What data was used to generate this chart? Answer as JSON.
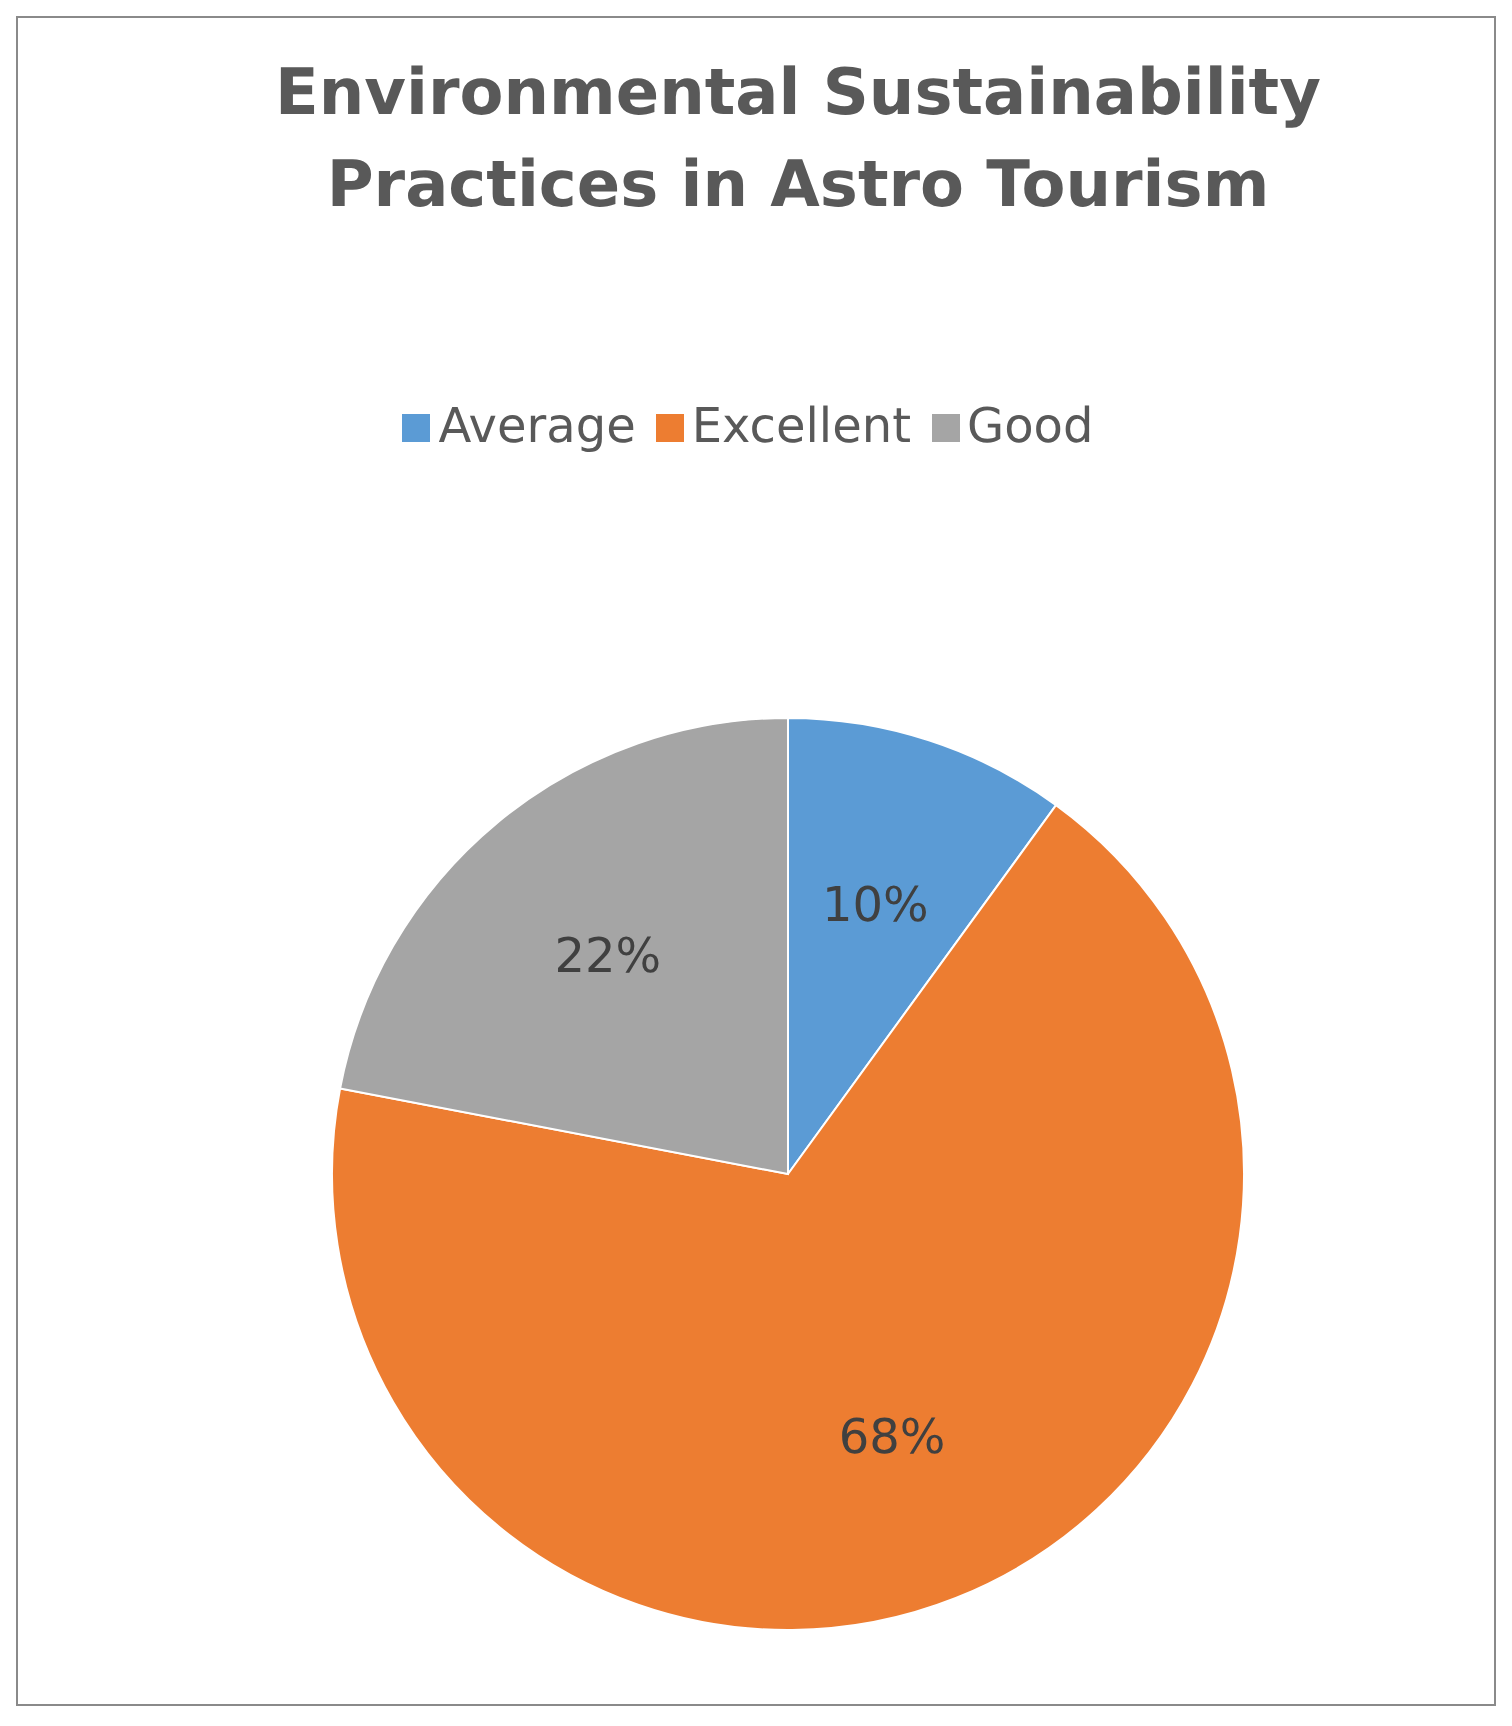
{
  "chart_data": {
    "type": "pie",
    "title": "Environmental Sustainability Practices in Astro Tourism",
    "categories": [
      "Average",
      "Excellent",
      "Good"
    ],
    "values": [
      10,
      68,
      22
    ],
    "colors": [
      "#5b9bd5",
      "#ed7d31",
      "#a5a5a5"
    ],
    "value_labels": [
      "10%",
      "68%",
      "22%"
    ],
    "legend": "top"
  }
}
